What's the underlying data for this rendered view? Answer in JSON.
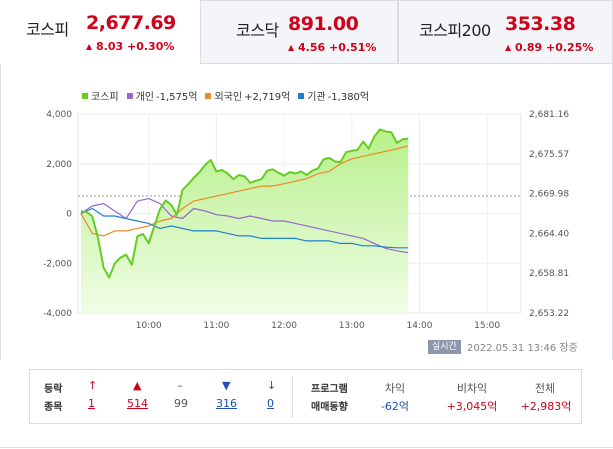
{
  "tabs": [
    {
      "name": "코스피",
      "price": "2,677.69",
      "change": "8.03",
      "pct": "+0.30%",
      "active": true
    },
    {
      "name": "코스닥",
      "price": "891.00",
      "change": "4.56",
      "pct": "+0.51%",
      "active": false
    },
    {
      "name": "코스피200",
      "price": "353.38",
      "change": "0.89",
      "pct": "+0.25%",
      "active": false
    }
  ],
  "legend": [
    {
      "name": "코스피",
      "value": "",
      "color": "#66cc22"
    },
    {
      "name": "개인",
      "value": "-1,575억",
      "color": "#9966cc"
    },
    {
      "name": "외국인",
      "value": "+2,719억",
      "color": "#ee8822"
    },
    {
      "name": "기관",
      "value": "-1,380억",
      "color": "#1e7fd0"
    }
  ],
  "colors": {
    "up": "#d0021b",
    "down": "#1a4fb4"
  },
  "chart_data": {
    "type": "line",
    "x_ticks": [
      "10:00",
      "11:00",
      "12:00",
      "13:00",
      "14:00",
      "15:00"
    ],
    "y_left_ticks": [
      "4,000",
      "2,000",
      "0",
      "-2,000",
      "-4,000"
    ],
    "y_left_range": [
      -4000,
      4000
    ],
    "y_right_ticks": [
      "2,681.16",
      "2,675.57",
      "2,669.98",
      "2,664.40",
      "2,658.81",
      "2,653.22"
    ],
    "y_right_range": [
      2653.22,
      2681.16
    ],
    "reference_value": 2669.66,
    "area_fill": true,
    "series": [
      {
        "name": "코스피",
        "axis": "right",
        "t": [
          0,
          5,
          10,
          15,
          20,
          25,
          30,
          35,
          40,
          45,
          50,
          55,
          60,
          65,
          70,
          75,
          80,
          85,
          90,
          95,
          100,
          105,
          110,
          115,
          120,
          125,
          130,
          135,
          140,
          145,
          150,
          155,
          160,
          165,
          170,
          175,
          180,
          185,
          190,
          195,
          200,
          205,
          210,
          215,
          220,
          225,
          230,
          235,
          240,
          245,
          250,
          255,
          260,
          265,
          270,
          275,
          280,
          285,
          290
        ],
        "v": [
          2667.5,
          2667.4,
          2666.8,
          2663.8,
          2659.6,
          2658.2,
          2660.2,
          2661.0,
          2661.4,
          2660.0,
          2664.0,
          2664.3,
          2663.0,
          2665.4,
          2667.8,
          2669.0,
          2668.4,
          2667.0,
          2670.5,
          2671.3,
          2672.2,
          2673.0,
          2674.0,
          2674.7,
          2673.1,
          2673.3,
          2672.8,
          2672.0,
          2672.6,
          2672.4,
          2671.5,
          2671.8,
          2672.0,
          2673.2,
          2673.4,
          2672.9,
          2672.5,
          2673.0,
          2672.8,
          2673.1,
          2672.6,
          2673.2,
          2673.5,
          2674.8,
          2675.0,
          2674.5,
          2674.4,
          2675.8,
          2676.0,
          2676.1,
          2677.3,
          2676.3,
          2678.0,
          2679.0,
          2678.7,
          2678.6,
          2677.1,
          2677.6,
          2677.7
        ]
      },
      {
        "name": "개인",
        "axis": "left",
        "t": [
          0,
          10,
          20,
          30,
          40,
          50,
          60,
          70,
          80,
          90,
          100,
          110,
          120,
          130,
          140,
          150,
          160,
          170,
          180,
          190,
          200,
          210,
          220,
          230,
          240,
          250,
          260,
          270,
          280,
          290
        ],
        "v": [
          0,
          300,
          400,
          100,
          -200,
          500,
          600,
          400,
          -100,
          -200,
          200,
          100,
          -50,
          -100,
          -200,
          -100,
          -200,
          -300,
          -300,
          -400,
          -500,
          -600,
          -700,
          -800,
          -900,
          -1000,
          -1200,
          -1400,
          -1500,
          -1575
        ]
      },
      {
        "name": "외국인",
        "axis": "left",
        "t": [
          0,
          10,
          20,
          30,
          40,
          50,
          60,
          70,
          80,
          90,
          100,
          110,
          120,
          130,
          140,
          150,
          160,
          170,
          180,
          190,
          200,
          210,
          220,
          230,
          240,
          250,
          260,
          270,
          280,
          290
        ],
        "v": [
          0,
          -800,
          -900,
          -700,
          -700,
          -600,
          -500,
          -300,
          -200,
          200,
          500,
          600,
          700,
          800,
          900,
          1000,
          1100,
          1100,
          1200,
          1300,
          1400,
          1600,
          1700,
          2000,
          2200,
          2300,
          2400,
          2500,
          2600,
          2719
        ]
      },
      {
        "name": "기관",
        "axis": "left",
        "t": [
          0,
          10,
          20,
          30,
          40,
          50,
          60,
          70,
          80,
          90,
          100,
          110,
          120,
          130,
          140,
          150,
          160,
          170,
          180,
          190,
          200,
          210,
          220,
          230,
          240,
          250,
          260,
          270,
          280,
          290
        ],
        "v": [
          0,
          200,
          -100,
          -100,
          -200,
          -300,
          -400,
          -600,
          -500,
          -600,
          -700,
          -700,
          -700,
          -800,
          -900,
          -900,
          -1000,
          -1000,
          -1000,
          -1000,
          -1100,
          -1100,
          -1100,
          -1200,
          -1200,
          -1300,
          -1300,
          -1350,
          -1380,
          -1380
        ]
      }
    ]
  },
  "realtime_label": "실시간",
  "timestamp": "2022.05.31 13:46 장중",
  "breadth": {
    "label_line1": "등락",
    "label_line2": "종목",
    "items": [
      {
        "icon": "↑",
        "value": "1",
        "color": "#d0021b"
      },
      {
        "icon": "▲",
        "value": "514",
        "color": "#d0021b"
      },
      {
        "icon": "–",
        "value": "99",
        "color": "#555555"
      },
      {
        "icon": "▼",
        "value": "316",
        "color": "#1a4fb4"
      },
      {
        "icon": "↓",
        "value": "0",
        "color": "#1a4fb4"
      }
    ]
  },
  "program": {
    "label_line1": "프로그램",
    "label_line2": "매매동향",
    "cols": [
      {
        "head": "차익",
        "value": "-62억",
        "color": "#1a4fb4"
      },
      {
        "head": "비차익",
        "value": "+3,045억",
        "color": "#d0021b"
      },
      {
        "head": "전체",
        "value": "+2,983억",
        "color": "#d0021b"
      }
    ]
  }
}
